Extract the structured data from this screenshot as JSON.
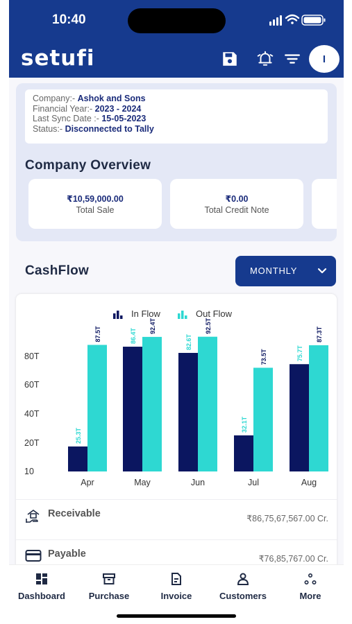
{
  "status_bar": {
    "time": "10:40"
  },
  "header": {
    "logo": "setufi",
    "avatar_initial": "I",
    "icons": [
      "save-icon",
      "bell-icon",
      "filter-icon"
    ]
  },
  "company_info": {
    "company_label": "Company:-",
    "company": "Ashok and Sons",
    "fy_label": "Financial Year:-",
    "fy": "2023 - 2024",
    "sync_label": "Last Sync Date :-",
    "sync": "15-05-2023",
    "status_label": "Status:-",
    "status": "Disconnected to Tally"
  },
  "overview": {
    "title": "Company Overview",
    "stats": [
      {
        "value": "₹10,59,000.00",
        "label": "Total Sale"
      },
      {
        "value": "₹0.00",
        "label": "Total Credit Note"
      }
    ]
  },
  "cashflow": {
    "title": "CashFlow",
    "period": "MONTHLY"
  },
  "chart_data": {
    "type": "bar",
    "categories": [
      "Apr",
      "May",
      "Jun",
      "Jul",
      "Aug"
    ],
    "series": [
      {
        "name": "In Flow",
        "values": [
          25.3,
          86.4,
          82.6,
          32.1,
          75.7
        ],
        "labels": [
          "25.3T",
          "86.4T",
          "82.6T",
          "32.1T",
          "75.7T"
        ],
        "color": "#0b1660"
      },
      {
        "name": "Out Flow",
        "values": [
          87.5,
          92.4,
          92.5,
          73.5,
          87.3
        ],
        "labels": [
          "87.5T",
          "92.4T",
          "92.5T",
          "73.5T",
          "87.3T"
        ],
        "color": "#2ed8d2"
      }
    ],
    "yticks": [
      10,
      20,
      40,
      60,
      80
    ],
    "ytick_labels": [
      "10",
      "20T",
      "40T",
      "60T",
      "80T"
    ],
    "ylim": [
      10,
      100
    ],
    "legend_position": "top"
  },
  "summary": [
    {
      "label": "Receivable",
      "value": "₹86,75,67,567.00 Cr."
    },
    {
      "label": "Payable",
      "value": "₹76,85,767.00 Cr."
    }
  ],
  "nav": [
    {
      "label": "Dashboard",
      "icon": "dashboard-icon"
    },
    {
      "label": "Purchase",
      "icon": "purchase-icon"
    },
    {
      "label": "Invoice",
      "icon": "invoice-icon"
    },
    {
      "label": "Customers",
      "icon": "customers-icon"
    },
    {
      "label": "More",
      "icon": "more-icon"
    }
  ]
}
